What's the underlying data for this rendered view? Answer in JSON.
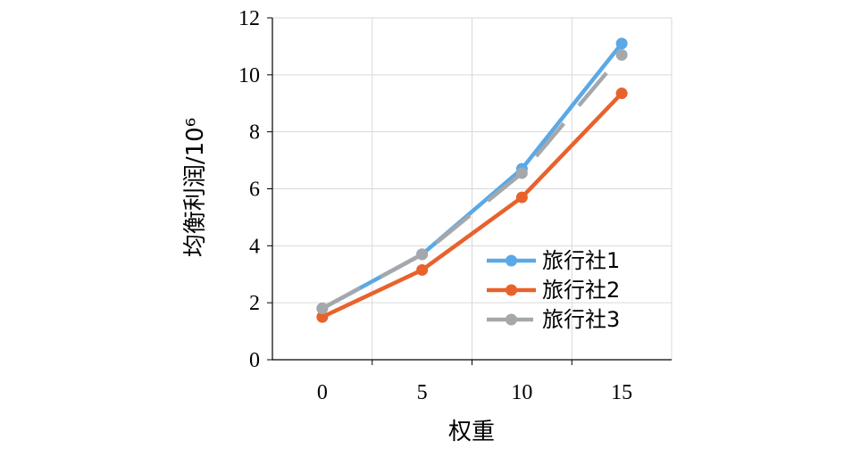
{
  "chart_data": {
    "type": "line",
    "xlabel": "权重",
    "ylabel": "均衡利润/10⁶",
    "x": [
      0,
      5,
      10,
      15
    ],
    "x_ticks": [
      "0",
      "5",
      "10",
      "15"
    ],
    "y_ticks": [
      "0",
      "2",
      "4",
      "6",
      "8",
      "10",
      "12"
    ],
    "xlim": [
      -2.5,
      17.5
    ],
    "ylim": [
      0,
      12
    ],
    "grid": true,
    "legend_position": "bottom-right",
    "series": [
      {
        "name": "旅行社1",
        "values": [
          1.8,
          3.7,
          6.7,
          11.1
        ],
        "color": "#5aa9e6",
        "dash": "solid"
      },
      {
        "name": "旅行社2",
        "values": [
          1.5,
          3.15,
          5.7,
          9.35
        ],
        "color": "#e8622c",
        "dash": "solid"
      },
      {
        "name": "旅行社3",
        "values": [
          1.8,
          3.7,
          6.55,
          10.7
        ],
        "color": "#a5a8ab",
        "dash": "dashed"
      }
    ]
  }
}
